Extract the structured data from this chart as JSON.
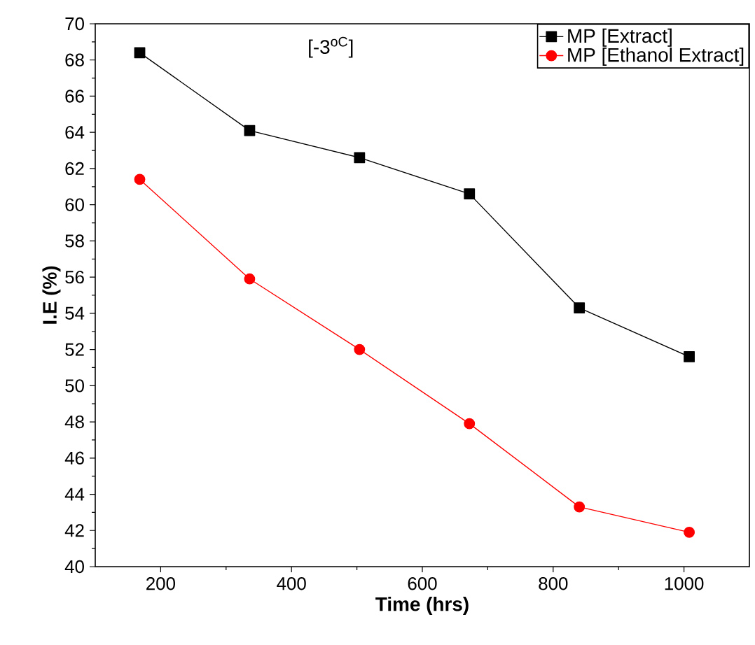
{
  "chart_data": {
    "type": "line",
    "xlabel": "Time (hrs)",
    "ylabel": "I.E (%)",
    "annotations": [
      "[-3$^{oC}$]"
    ],
    "x": [
      168,
      336,
      504,
      672,
      840,
      1008
    ],
    "series": [
      {
        "name": "MP [Extract]",
        "color": "#000000",
        "marker": "square",
        "values": [
          68.4,
          64.1,
          62.6,
          60.6,
          54.3,
          51.6
        ]
      },
      {
        "name": "MP [Ethanol Extract]",
        "color": "#ff0000",
        "marker": "circle",
        "values": [
          61.4,
          55.9,
          52.0,
          47.9,
          43.3,
          41.9
        ]
      }
    ],
    "xlim": [
      100,
      1100
    ],
    "xticks": [
      200,
      400,
      600,
      800,
      1000
    ],
    "ylim": [
      40,
      70
    ],
    "yticks": [
      40,
      42,
      44,
      46,
      48,
      50,
      52,
      54,
      56,
      58,
      60,
      62,
      64,
      66,
      68,
      70
    ],
    "grid": false,
    "legend": "top right",
    "line_style": "solid"
  }
}
